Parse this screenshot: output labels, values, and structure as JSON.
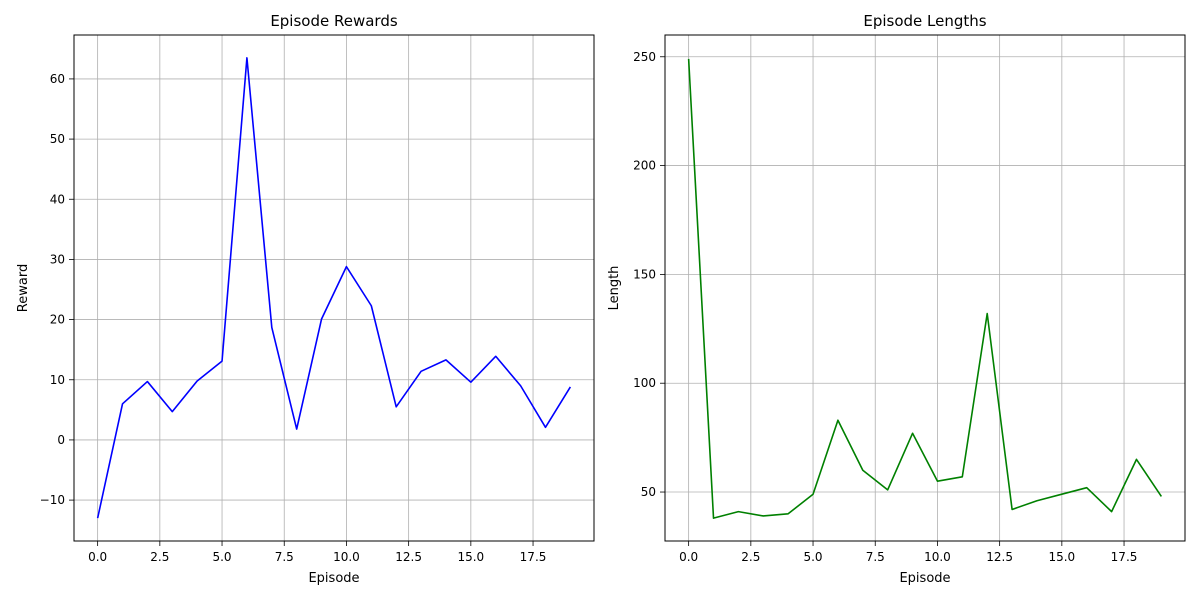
{
  "chart_data": [
    {
      "type": "line",
      "title": "Episode Rewards",
      "xlabel": "Episode",
      "ylabel": "Reward",
      "grid": true,
      "color": "#0000ff",
      "xlim": [
        -0.95,
        19.95
      ],
      "ylim": [
        -16.8,
        67.3
      ],
      "xticks": [
        0,
        2.5,
        5,
        7.5,
        10,
        12.5,
        15,
        17.5
      ],
      "xtick_labels": [
        "0.0",
        "2.5",
        "5.0",
        "7.5",
        "10.0",
        "12.5",
        "15.0",
        "17.5"
      ],
      "yticks": [
        -10,
        0,
        10,
        20,
        30,
        40,
        50,
        60
      ],
      "ytick_labels": [
        "−10",
        "0",
        "10",
        "20",
        "30",
        "40",
        "50",
        "60"
      ],
      "x": [
        0,
        1,
        2,
        3,
        4,
        5,
        6,
        7,
        8,
        9,
        10,
        11,
        12,
        13,
        14,
        15,
        16,
        17,
        18,
        19
      ],
      "values": [
        -13.0,
        6.0,
        9.7,
        4.7,
        9.8,
        13.1,
        63.5,
        18.7,
        1.8,
        20.1,
        28.8,
        22.3,
        5.5,
        11.4,
        13.3,
        9.6,
        13.9,
        9.0,
        2.1,
        8.8
      ]
    },
    {
      "type": "line",
      "title": "Episode Lengths",
      "xlabel": "Episode",
      "ylabel": "Length",
      "grid": true,
      "color": "#008000",
      "xlim": [
        -0.95,
        19.95
      ],
      "ylim": [
        27.5,
        260.0
      ],
      "xticks": [
        0,
        2.5,
        5,
        7.5,
        10,
        12.5,
        15,
        17.5
      ],
      "xtick_labels": [
        "0.0",
        "2.5",
        "5.0",
        "7.5",
        "10.0",
        "12.5",
        "15.0",
        "17.5"
      ],
      "yticks": [
        50,
        100,
        150,
        200,
        250
      ],
      "ytick_labels": [
        "50",
        "100",
        "150",
        "200",
        "250"
      ],
      "x": [
        0,
        1,
        2,
        3,
        4,
        5,
        6,
        7,
        8,
        9,
        10,
        11,
        12,
        13,
        14,
        15,
        16,
        17,
        18,
        19
      ],
      "values": [
        249,
        38,
        41,
        39,
        40,
        49,
        83,
        60,
        51,
        77,
        55,
        57,
        132,
        42,
        46,
        49,
        52,
        41,
        65,
        48
      ]
    }
  ]
}
